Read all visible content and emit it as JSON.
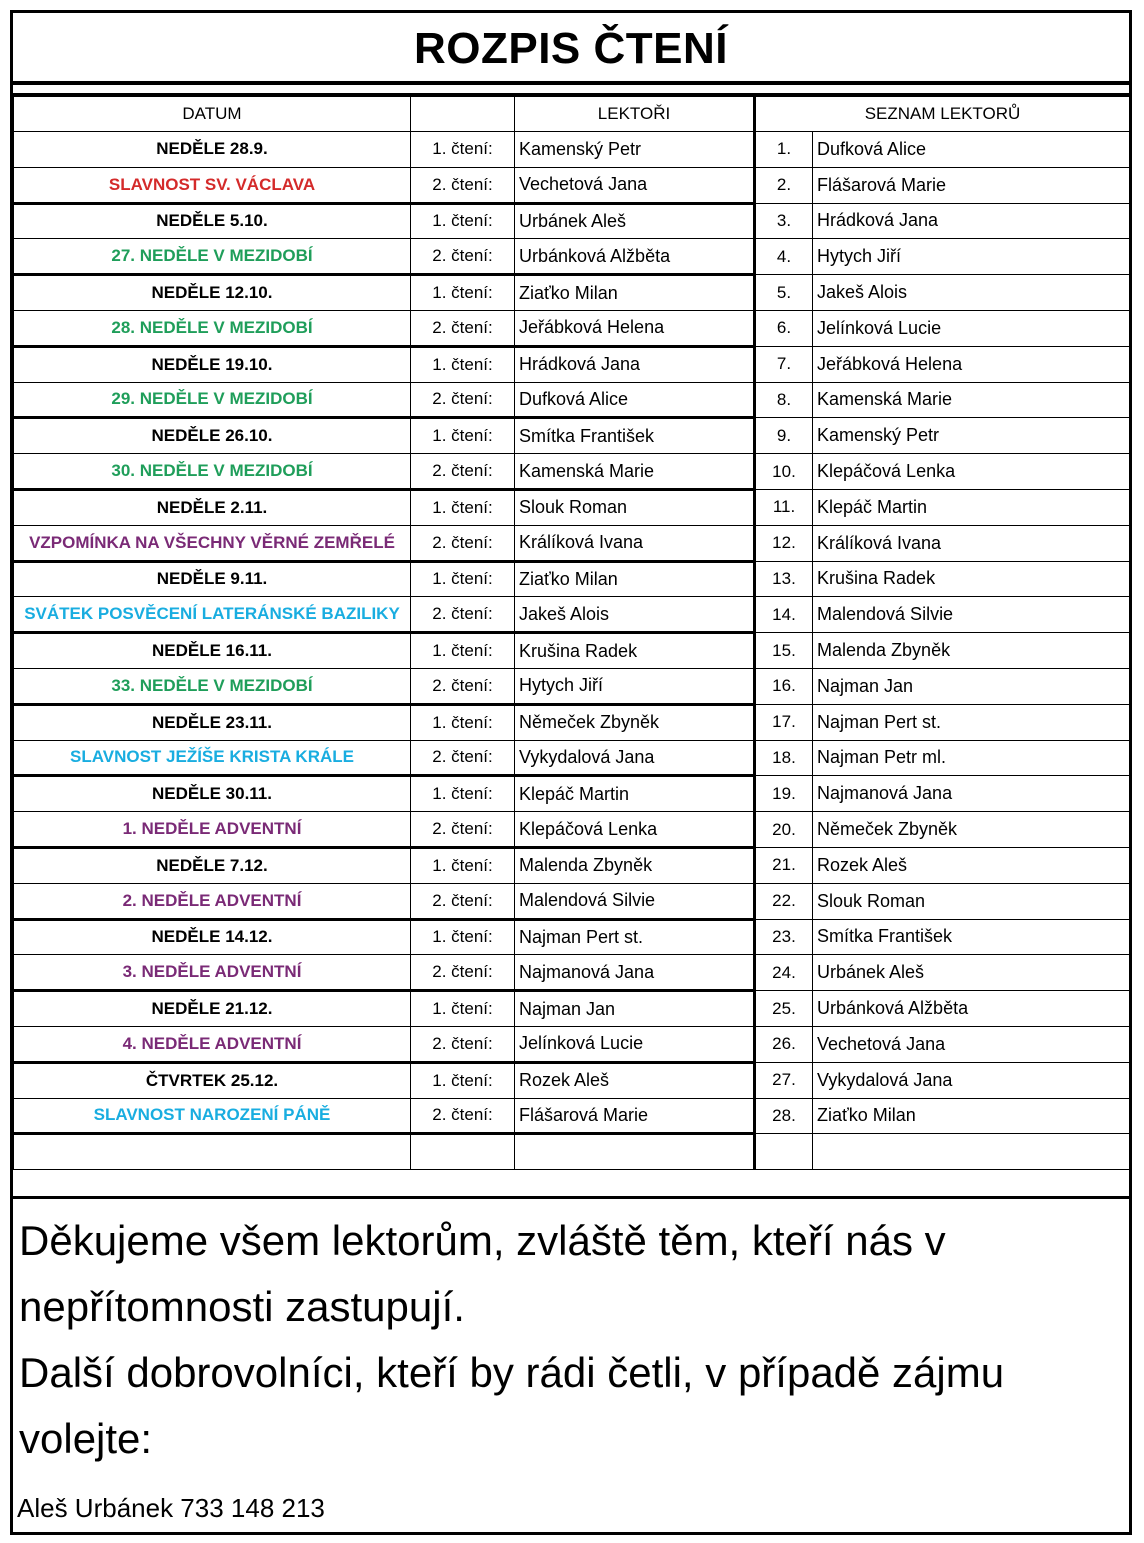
{
  "title": "ROZPIS ČTENÍ",
  "headers": {
    "date": "DATUM",
    "reading": "",
    "lectors": "LEKTOŘI",
    "list": "SEZNAM LEKTORŮ"
  },
  "colors": {
    "black": "#000000",
    "red": "#d42a2a",
    "green": "#1f9e5a",
    "purple": "#7a2a76",
    "cyan": "#19ade0"
  },
  "rows": [
    {
      "date": "NEDĚLE 28.9.",
      "color": "black",
      "reading": "1. čtení:",
      "lector": "Kamenský Petr",
      "num": "1.",
      "name": "Dufková Alice"
    },
    {
      "date": "SLAVNOST SV. VÁCLAVA",
      "color": "red",
      "reading": "2. čtení:",
      "lector": "Vechetová Jana",
      "num": "2.",
      "name": "Flášarová Marie"
    },
    {
      "date": "NEDĚLE 5.10.",
      "color": "black",
      "reading": "1. čtení:",
      "lector": "Urbánek Aleš",
      "num": "3.",
      "name": "Hrádková Jana"
    },
    {
      "date": "27. NEDĚLE V MEZIDOBÍ",
      "color": "green",
      "reading": "2. čtení:",
      "lector": "Urbánková Alžběta",
      "num": "4.",
      "name": "Hytych Jiří"
    },
    {
      "date": "NEDĚLE 12.10.",
      "color": "black",
      "reading": "1. čtení:",
      "lector": "Ziaťko Milan",
      "num": "5.",
      "name": "Jakeš Alois"
    },
    {
      "date": "28. NEDĚLE V MEZIDOBÍ",
      "color": "green",
      "reading": "2. čtení:",
      "lector": "Jeřábková Helena",
      "num": "6.",
      "name": "Jelínková Lucie"
    },
    {
      "date": "NEDĚLE 19.10.",
      "color": "black",
      "reading": "1. čtení:",
      "lector": "Hrádková Jana",
      "num": "7.",
      "name": "Jeřábková Helena"
    },
    {
      "date": "29. NEDĚLE V MEZIDOBÍ",
      "color": "green",
      "reading": "2. čtení:",
      "lector": "Dufková Alice",
      "num": "8.",
      "name": "Kamenská Marie"
    },
    {
      "date": "NEDĚLE 26.10.",
      "color": "black",
      "reading": "1. čtení:",
      "lector": "Smítka František",
      "num": "9.",
      "name": "Kamenský Petr"
    },
    {
      "date": "30. NEDĚLE V MEZIDOBÍ",
      "color": "green",
      "reading": "2. čtení:",
      "lector": "Kamenská Marie",
      "num": "10.",
      "name": "Klepáčová Lenka"
    },
    {
      "date": "NEDĚLE 2.11.",
      "color": "black",
      "reading": "1. čtení:",
      "lector": "Slouk Roman",
      "num": "11.",
      "name": "Klepáč Martin"
    },
    {
      "date": "VZPOMÍNKA NA VŠECHNY VĚRNÉ ZEMŘELÉ",
      "color": "purple",
      "reading": "2. čtení:",
      "lector": "Králíková Ivana",
      "num": "12.",
      "name": "Králíková Ivana"
    },
    {
      "date": "NEDĚLE 9.11.",
      "color": "black",
      "reading": "1. čtení:",
      "lector": "Ziaťko Milan",
      "num": "13.",
      "name": "Krušina Radek"
    },
    {
      "date": "SVÁTEK POSVĚCENÍ LATERÁNSKÉ BAZILIKY",
      "color": "cyan",
      "reading": "2. čtení:",
      "lector": "Jakeš Alois",
      "num": "14.",
      "name": "Malendová Silvie"
    },
    {
      "date": "NEDĚLE 16.11.",
      "color": "black",
      "reading": "1. čtení:",
      "lector": "Krušina Radek",
      "num": "15.",
      "name": "Malenda Zbyněk"
    },
    {
      "date": "33. NEDĚLE V MEZIDOBÍ",
      "color": "green",
      "reading": "2. čtení:",
      "lector": "Hytych Jiří",
      "num": "16.",
      "name": "Najman Jan"
    },
    {
      "date": "NEDĚLE 23.11.",
      "color": "black",
      "reading": "1. čtení:",
      "lector": "Němeček Zbyněk",
      "num": "17.",
      "name": "Najman Pert st."
    },
    {
      "date": "SLAVNOST JEŽÍŠE KRISTA KRÁLE",
      "color": "cyan",
      "reading": "2. čtení:",
      "lector": "Vykydalová Jana",
      "num": "18.",
      "name": "Najman Petr ml."
    },
    {
      "date": "NEDĚLE 30.11.",
      "color": "black",
      "reading": "1. čtení:",
      "lector": "Klepáč Martin",
      "num": "19.",
      "name": "Najmanová Jana"
    },
    {
      "date": "1. NEDĚLE ADVENTNÍ",
      "color": "purple",
      "reading": "2. čtení:",
      "lector": "Klepáčová Lenka",
      "num": "20.",
      "name": "Němeček Zbyněk"
    },
    {
      "date": "NEDĚLE 7.12.",
      "color": "black",
      "reading": "1. čtení:",
      "lector": "Malenda Zbyněk",
      "num": "21.",
      "name": "Rozek Aleš"
    },
    {
      "date": "2. NEDĚLE ADVENTNÍ",
      "color": "purple",
      "reading": "2. čtení:",
      "lector": "Malendová Silvie",
      "num": "22.",
      "name": "Slouk Roman"
    },
    {
      "date": "NEDĚLE 14.12.",
      "color": "black",
      "reading": "1. čtení:",
      "lector": "Najman Pert st.",
      "num": "23.",
      "name": "Smítka František"
    },
    {
      "date": "3. NEDĚLE ADVENTNÍ",
      "color": "purple",
      "reading": "2. čtení:",
      "lector": "Najmanová Jana",
      "num": "24.",
      "name": "Urbánek Aleš"
    },
    {
      "date": "NEDĚLE 21.12.",
      "color": "black",
      "reading": "1. čtení:",
      "lector": "Najman Jan",
      "num": "25.",
      "name": "Urbánková Alžběta"
    },
    {
      "date": "4. NEDĚLE ADVENTNÍ",
      "color": "purple",
      "reading": "2. čtení:",
      "lector": "Jelínková Lucie",
      "num": "26.",
      "name": "Vechetová Jana"
    },
    {
      "date": "ČTVRTEK 25.12.",
      "color": "black",
      "reading": "1. čtení:",
      "lector": "Rozek Aleš",
      "num": "27.",
      "name": "Vykydalová Jana"
    },
    {
      "date": "SLAVNOST NAROZENÍ PÁNĚ",
      "color": "cyan",
      "reading": "2. čtení:",
      "lector": "Flášarová Marie",
      "num": "28.",
      "name": "Ziaťko Milan"
    },
    {
      "date": "",
      "color": "black",
      "reading": "",
      "lector": "",
      "num": "",
      "name": ""
    }
  ],
  "footer": {
    "thanks": "Děkujeme všem lektorům, zvláště těm, kteří nás v nepřítomnosti zastupují.",
    "volunteers": "Další dobrovolníci, kteří by rádi četli, v případě zájmu volejte:",
    "contact": "Aleš Urbánek  733 148  213"
  }
}
